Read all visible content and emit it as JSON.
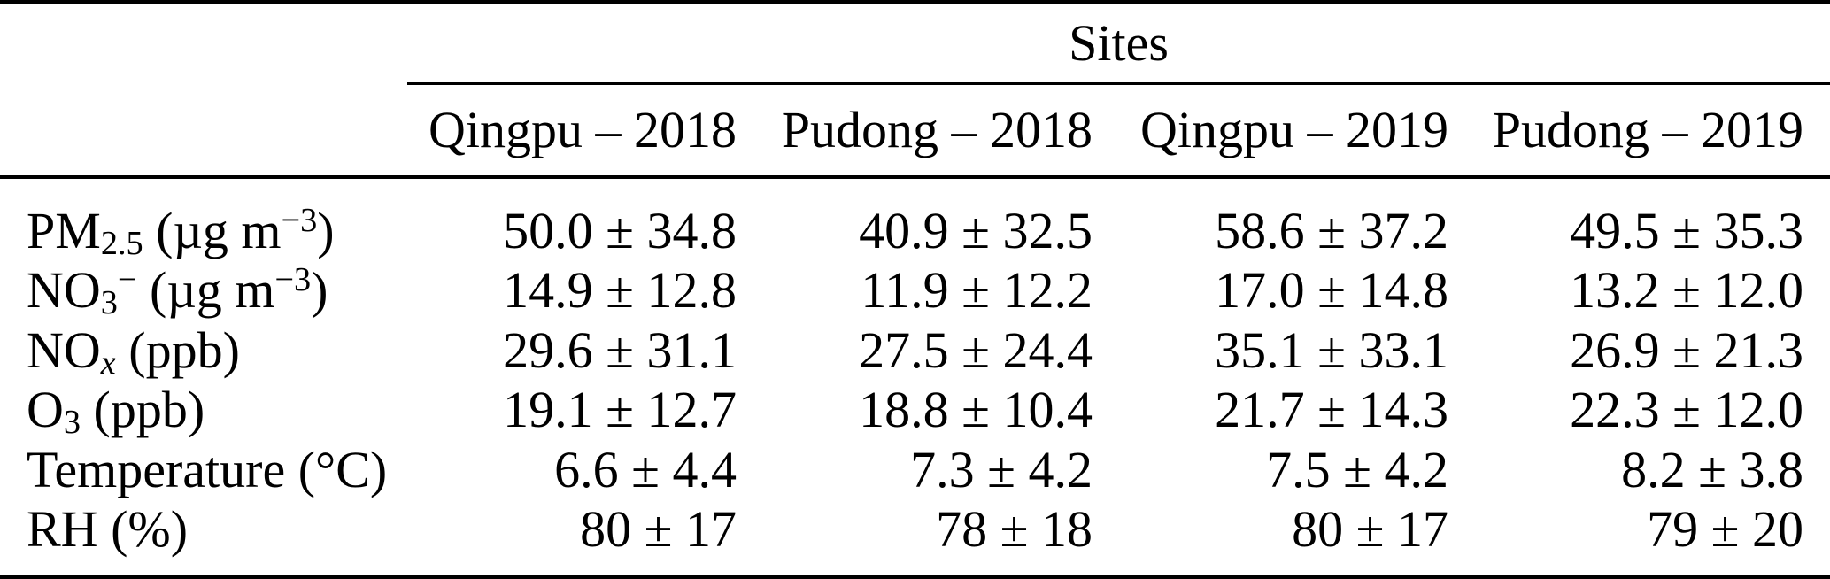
{
  "page": {
    "background_color": "#ffffff",
    "text_color": "#000000",
    "rule_color": "#000000"
  },
  "table": {
    "group_header": "Sites",
    "column_headers": [
      "Qingpu – 2018",
      "Pudong – 2018",
      "Qingpu – 2019",
      "Pudong – 2019"
    ],
    "rows": [
      {
        "label_parts": [
          "PM",
          "2.5",
          " (µg m",
          "−3",
          ")"
        ],
        "values": [
          "50.0 ± 34.8",
          "40.9 ± 32.5",
          "58.6 ± 37.2",
          "49.5 ± 35.3"
        ]
      },
      {
        "label_parts": [
          "NO",
          "3",
          "−",
          " (µg m",
          "−3",
          ")"
        ],
        "values": [
          "14.9 ± 12.8",
          "11.9 ± 12.2",
          "17.0 ± 14.8",
          "13.2 ± 12.0"
        ]
      },
      {
        "label_parts": [
          "NO",
          "x",
          " (ppb)"
        ],
        "values": [
          "29.6 ± 31.1",
          "27.5 ± 24.4",
          "35.1 ± 33.1",
          "26.9 ± 21.3"
        ]
      },
      {
        "label_parts": [
          "O",
          "3",
          " (ppb)"
        ],
        "values": [
          "19.1 ± 12.7",
          "18.8 ± 10.4",
          "21.7 ± 14.3",
          "22.3 ± 12.0"
        ]
      },
      {
        "label_parts": [
          "Temperature (°C)"
        ],
        "values": [
          "6.6 ± 4.4",
          "7.3 ± 4.2",
          "7.5 ± 4.2",
          "8.2 ± 3.8"
        ]
      },
      {
        "label_parts": [
          "RH (%)"
        ],
        "values": [
          "80 ± 17",
          "78 ± 18",
          "80 ± 17",
          "79 ± 20"
        ]
      }
    ]
  },
  "chart_data": {
    "type": "table",
    "group_header": "Sites",
    "columns": [
      "",
      "Qingpu – 2018",
      "Pudong – 2018",
      "Qingpu – 2019",
      "Pudong – 2019"
    ],
    "rows": [
      [
        "PM2.5 (µg m−3)",
        "50.0 ± 34.8",
        "40.9 ± 32.5",
        "58.6 ± 37.2",
        "49.5 ± 35.3"
      ],
      [
        "NO3− (µg m−3)",
        "14.9 ± 12.8",
        "11.9 ± 12.2",
        "17.0 ± 14.8",
        "13.2 ± 12.0"
      ],
      [
        "NOx (ppb)",
        "29.6 ± 31.1",
        "27.5 ± 24.4",
        "35.1 ± 33.1",
        "26.9 ± 21.3"
      ],
      [
        "O3 (ppb)",
        "19.1 ± 12.7",
        "18.8 ± 10.4",
        "21.7 ± 14.3",
        "22.3 ± 12.0"
      ],
      [
        "Temperature (°C)",
        "6.6 ± 4.4",
        "7.3 ± 4.2",
        "7.5 ± 4.2",
        "8.2 ± 3.8"
      ],
      [
        "RH (%)",
        "80 ± 17",
        "78 ± 18",
        "80 ± 17",
        "79 ± 20"
      ]
    ]
  }
}
